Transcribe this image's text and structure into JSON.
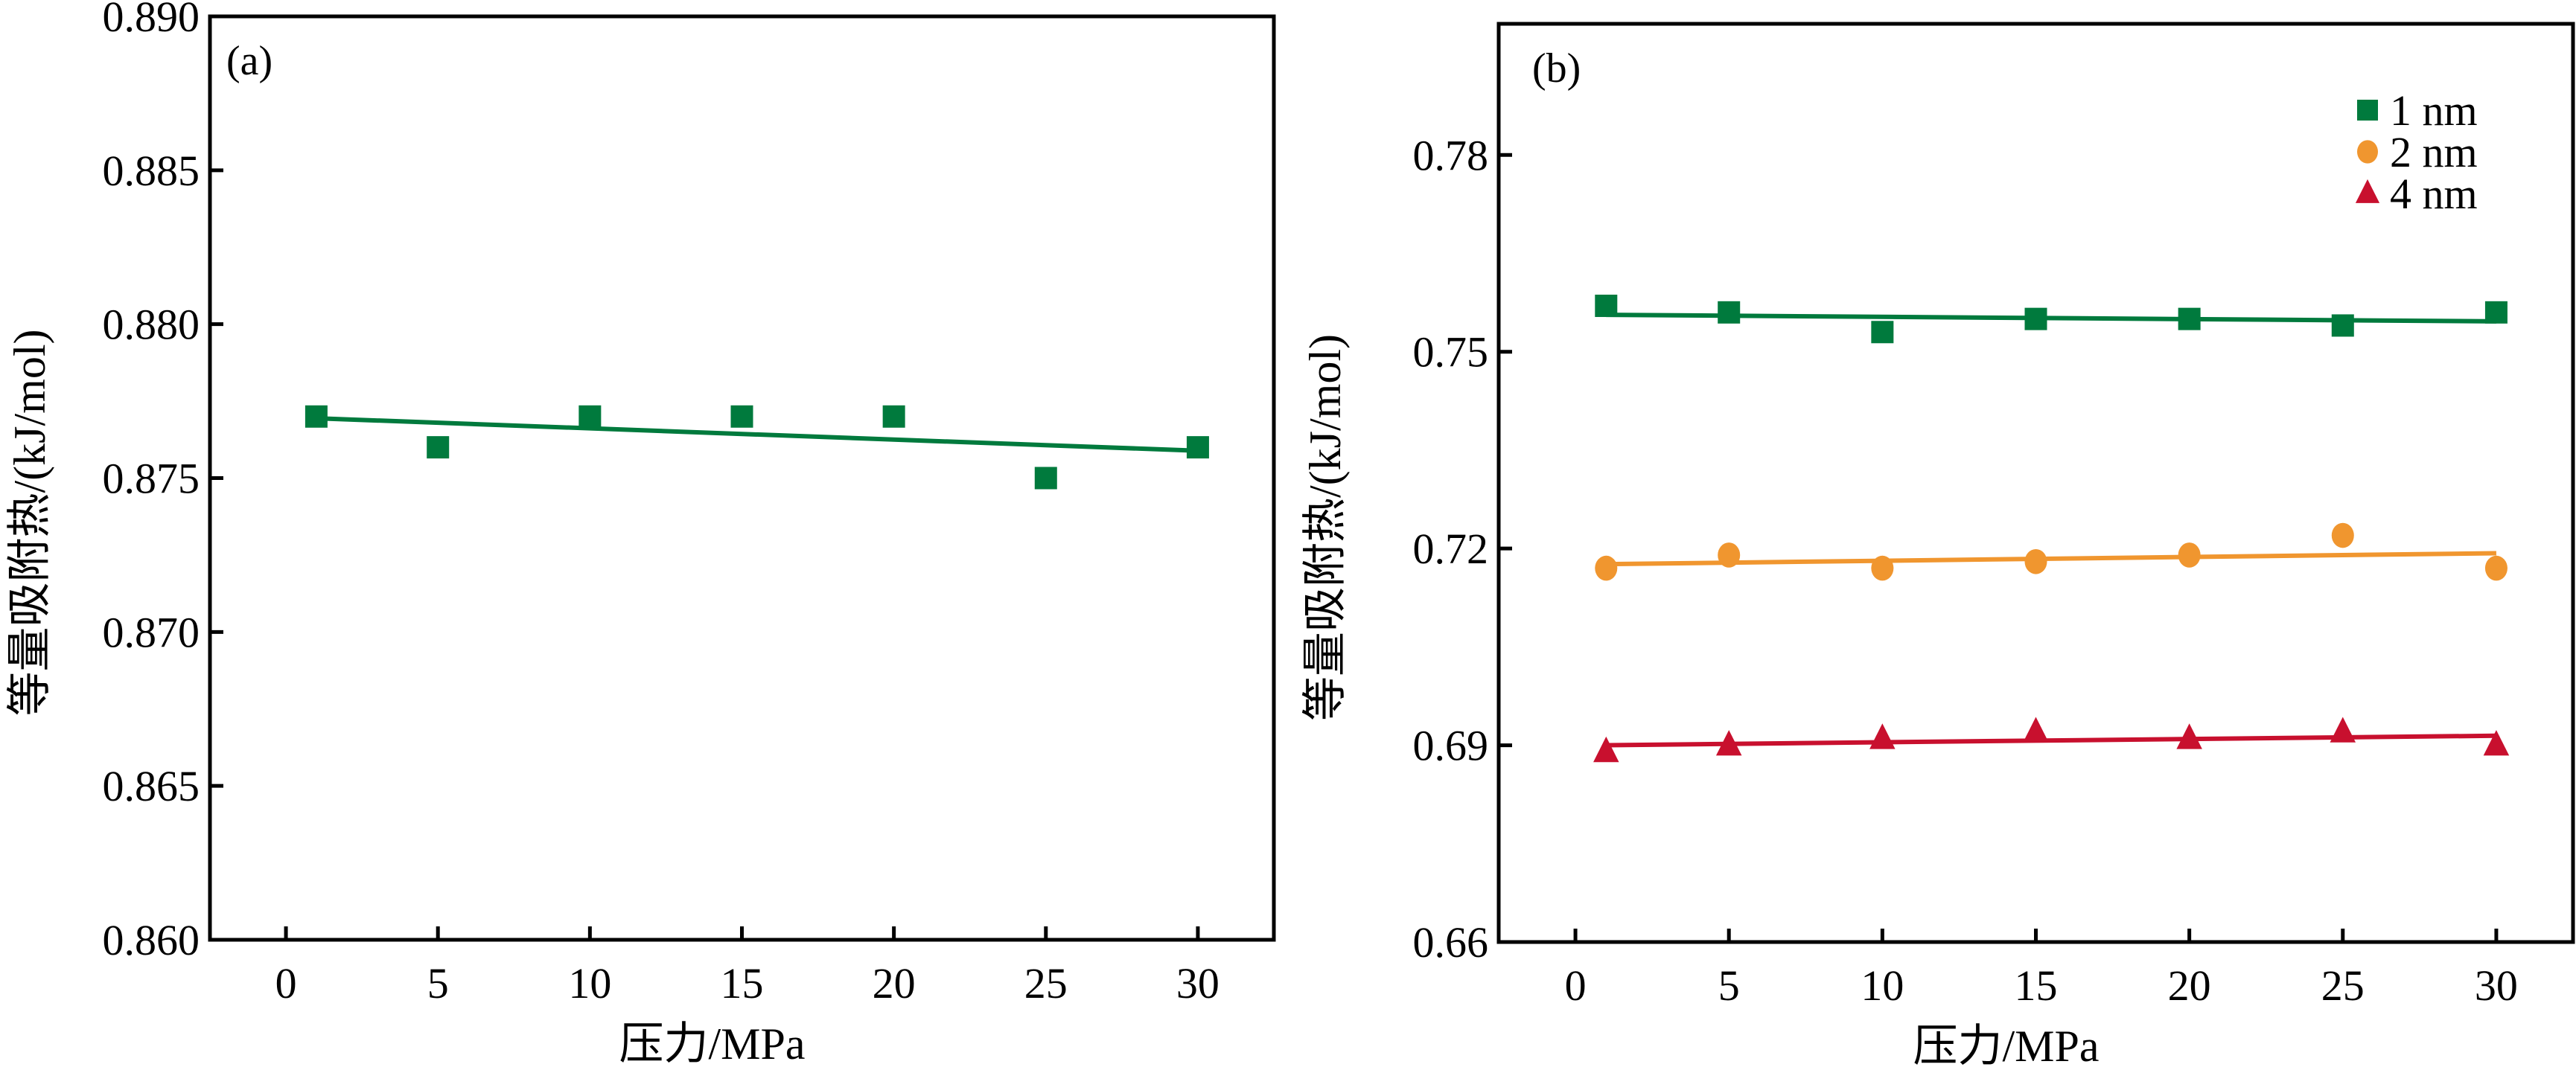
{
  "figure": {
    "y_axis_title": "等量吸附热/(kJ/mol)",
    "x_axis_title": "压力/MPa"
  },
  "chart_data": [
    {
      "type": "scatter",
      "panel_label": "(a)",
      "title": "",
      "xlabel": "压力/MPa",
      "ylabel": "等量吸附热/(kJ/mol)",
      "xlim": [
        -2.5,
        32.5
      ],
      "ylim": [
        0.86,
        0.89
      ],
      "x_ticks": [
        0,
        5,
        10,
        15,
        20,
        25,
        30
      ],
      "x_tick_labels": [
        "0",
        "5",
        "10",
        "15",
        "20",
        "25",
        "30"
      ],
      "y_ticks": [
        0.86,
        0.865,
        0.87,
        0.875,
        0.88,
        0.885,
        0.89
      ],
      "y_tick_labels": [
        "0.860",
        "0.865",
        "0.870",
        "0.875",
        "0.880",
        "0.885",
        "0.890"
      ],
      "grid": false,
      "legend": null,
      "x": [
        1,
        5,
        10,
        15,
        20,
        25,
        30
      ],
      "series": [
        {
          "name": "",
          "marker": "square",
          "color": "#007A3D",
          "values": [
            0.877,
            0.876,
            0.877,
            0.877,
            0.877,
            0.875,
            0.876
          ],
          "fit": "linear"
        }
      ]
    },
    {
      "type": "scatter",
      "panel_label": "(b)",
      "title": "",
      "xlabel": "压力/MPa",
      "ylabel": "等量吸附热/(kJ/mol)",
      "xlim": [
        -2.5,
        32.5
      ],
      "ylim": [
        0.66,
        0.8
      ],
      "x_ticks": [
        0,
        5,
        10,
        15,
        20,
        25,
        30
      ],
      "x_tick_labels": [
        "0",
        "5",
        "10",
        "15",
        "20",
        "25",
        "30"
      ],
      "y_ticks": [
        0.66,
        0.69,
        0.72,
        0.75,
        0.78
      ],
      "y_tick_labels": [
        "0.66",
        "0.69",
        "0.72",
        "0.75",
        "0.78"
      ],
      "grid": false,
      "legend": "top-right",
      "x": [
        1,
        5,
        10,
        15,
        20,
        25,
        30
      ],
      "series": [
        {
          "name": "1 nm",
          "marker": "square",
          "color": "#007A3D",
          "values": [
            0.757,
            0.756,
            0.753,
            0.755,
            0.755,
            0.754,
            0.756
          ],
          "fit": "linear"
        },
        {
          "name": "2 nm",
          "marker": "circle",
          "color": "#F0962F",
          "values": [
            0.717,
            0.719,
            0.717,
            0.718,
            0.719,
            0.722,
            0.717
          ],
          "fit": "linear"
        },
        {
          "name": "4 nm",
          "marker": "triangle",
          "color": "#C8102E",
          "values": [
            0.689,
            0.69,
            0.691,
            0.692,
            0.691,
            0.692,
            0.69
          ],
          "fit": "linear"
        }
      ]
    }
  ]
}
